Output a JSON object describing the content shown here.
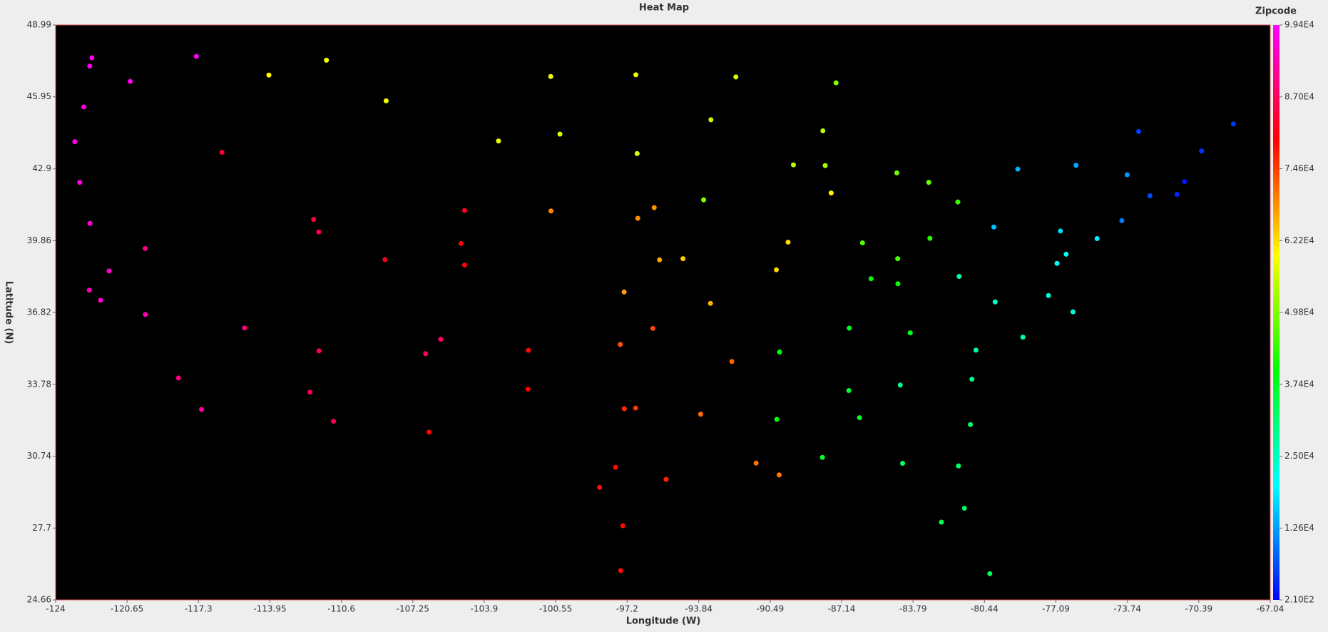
{
  "chart_data": {
    "type": "scatter",
    "title": "Heat Map",
    "x_label": "Longitude (W)",
    "y_label": "Latitude (N)",
    "colorbar_label": "Zipcode",
    "colormap": "rainbow",
    "background": "#000000",
    "xlim": [
      -124,
      -67.04
    ],
    "ylim": [
      24.66,
      48.99
    ],
    "clim": [
      210,
      99400
    ],
    "xticks": [
      -124,
      -120.65,
      -117.3,
      -113.95,
      -110.6,
      -107.25,
      -103.9,
      -100.55,
      -97.2,
      -93.84,
      -90.49,
      -87.14,
      -83.79,
      -80.44,
      -77.09,
      -73.74,
      -70.39,
      -67.04
    ],
    "yticks": [
      24.66,
      27.7,
      30.74,
      33.78,
      36.82,
      39.86,
      42.9,
      45.95,
      48.99
    ],
    "cticks": [
      {
        "value": 210,
        "label": "2.10E2"
      },
      {
        "value": 12600,
        "label": "1.26E4"
      },
      {
        "value": 25000,
        "label": "2.50E4"
      },
      {
        "value": 37400,
        "label": "3.74E4"
      },
      {
        "value": 49800,
        "label": "4.98E4"
      },
      {
        "value": 62200,
        "label": "6.22E4"
      },
      {
        "value": 74600,
        "label": "7.46E4"
      },
      {
        "value": 87000,
        "label": "8.70E4"
      },
      {
        "value": 99400,
        "label": "9.94E4"
      }
    ],
    "series": [
      {
        "name": "Zipcode",
        "x": [
          -122.3,
          -122.4,
          -117.4,
          -122.68,
          -123.1,
          -116.2,
          -111.9,
          -111.66,
          -122.42,
          -121.89,
          -121.49,
          -119.79,
          -118.24,
          -117.16,
          -115.14,
          -119.8,
          -112.07,
          -110.97,
          -106.65,
          -106.49,
          -104.99,
          -104.82,
          -104.82,
          -108.5,
          -114.0,
          -111.3,
          -100.78,
          -96.79,
          -96.73,
          -103.23,
          -95.93,
          -96.7,
          -97.34,
          -94.58,
          -90.2,
          -93.27,
          -93.61,
          -87.91,
          -87.63,
          -86.16,
          -83.05,
          -83.0,
          -81.69,
          -80.0,
          -75.16,
          -74.0,
          -71.06,
          -72.68,
          -71.41,
          -70.26,
          -68.77,
          -73.21,
          -73.75,
          -78.88,
          -76.15,
          -76.61,
          -77.04,
          -77.44,
          -76.29,
          -78.64,
          -80.84,
          -81.03,
          -84.39,
          -81.1,
          -81.66,
          -81.38,
          -82.46,
          -80.19,
          -86.8,
          -86.78,
          -90.05,
          -85.76,
          -90.18,
          -90.07,
          -91.15,
          -92.29,
          -97.52,
          -95.99,
          -96.8,
          -97.33,
          -97.74,
          -98.49,
          -95.37,
          -97.4,
          -97.5,
          -101.85,
          -101.83,
          -93.75,
          -88.02,
          -89.4,
          -92.1,
          -84.55,
          -87.4,
          -89.65,
          -84.51,
          -83.92,
          -81.63,
          -84.5,
          -79.94,
          -76.88,
          -88.04,
          -84.28,
          -86.3,
          -100.35,
          -100.77,
          -111.65,
          -108.55,
          -105.94,
          -122.39,
          -122.87,
          -120.5,
          -95.68,
          -93.29
        ],
        "values": [
          47.6,
          47.25,
          47.66,
          45.52,
          44.05,
          43.6,
          40.76,
          40.23,
          37.77,
          37.34,
          38.58,
          36.74,
          34.05,
          32.72,
          36.17,
          39.53,
          33.45,
          32.22,
          35.08,
          31.76,
          39.74,
          38.83,
          41.14,
          45.78,
          46.87,
          47.5,
          46.81,
          46.88,
          43.55,
          44.08,
          41.26,
          40.81,
          37.69,
          39.1,
          38.63,
          44.98,
          41.59,
          43.04,
          41.88,
          39.77,
          42.33,
          39.96,
          41.5,
          40.44,
          39.95,
          40.71,
          42.36,
          41.76,
          41.82,
          43.66,
          44.8,
          44.48,
          42.65,
          42.89,
          43.05,
          39.29,
          38.9,
          37.54,
          36.85,
          35.78,
          35.23,
          34.0,
          33.75,
          32.08,
          30.33,
          28.54,
          27.95,
          25.77,
          33.52,
          36.16,
          35.15,
          38.25,
          32.3,
          29.95,
          30.45,
          34.75,
          35.47,
          36.15,
          32.78,
          32.75,
          30.27,
          29.42,
          29.76,
          27.8,
          25.9,
          33.58,
          35.22,
          32.52,
          44.51,
          43.07,
          46.79,
          42.73,
          46.54,
          39.8,
          39.1,
          35.96,
          38.35,
          38.04,
          37.27,
          40.27,
          30.69,
          30.44,
          32.37,
          44.37,
          41.12,
          35.2,
          39.06,
          35.69,
          40.59,
          42.33,
          46.6,
          39.05,
          37.21
        ],
        "z": [
          98101,
          98402,
          99201,
          97201,
          97401,
          83702,
          84101,
          84601,
          94102,
          95113,
          95814,
          93721,
          90012,
          92101,
          89101,
          89501,
          85004,
          85701,
          87102,
          79901,
          80202,
          80903,
          82001,
          59101,
          59801,
          59401,
          58501,
          58102,
          57104,
          57701,
          68102,
          68508,
          67202,
          64106,
          63101,
          55401,
          50309,
          53202,
          60601,
          46204,
          48226,
          43215,
          44114,
          15222,
          19103,
          10007,
          2108,
          6103,
          2903,
          4101,
          4401,
          5401,
          12207,
          14202,
          13202,
          21202,
          20001,
          23219,
          23510,
          27601,
          28202,
          29201,
          30303,
          31401,
          32202,
          32801,
          33602,
          33130,
          35203,
          37203,
          38103,
          40202,
          39201,
          70112,
          70801,
          72201,
          73102,
          74103,
          75201,
          76102,
          78701,
          78205,
          77002,
          78401,
          78520,
          79401,
          79101,
          71101,
          54301,
          53703,
          55802,
          48933,
          49855,
          62701,
          45202,
          37902,
          25301,
          40507,
          24011,
          17101,
          36602,
          32301,
          36104,
          57501,
          69101,
          86001,
          81501,
          87501,
          96001,
          97501,
          98901,
          66603,
          65806
        ]
      }
    ]
  }
}
